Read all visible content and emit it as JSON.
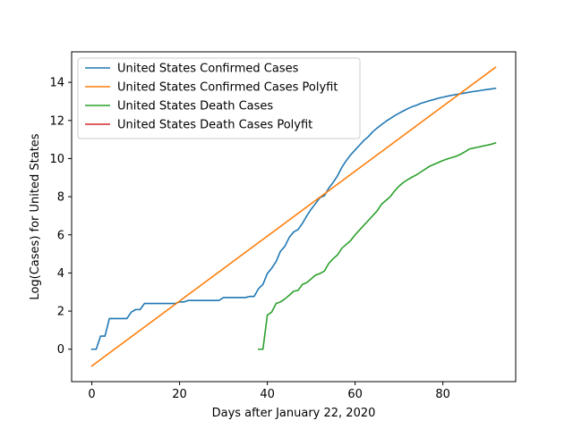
{
  "chart_data": {
    "type": "line",
    "title": "",
    "xlabel": "Days after January 22, 2020",
    "ylabel": "Log(Cases) for United States",
    "xlim": [
      -4.6,
      96.6
    ],
    "ylim": [
      -1.7,
      15.6
    ],
    "xticks": [
      0,
      20,
      40,
      60,
      80
    ],
    "yticks": [
      0,
      2,
      4,
      6,
      8,
      10,
      12,
      14
    ],
    "grid": false,
    "legend_position": "upper-left",
    "series": [
      {
        "name": "United States Confirmed Cases",
        "color": "#1f77b4",
        "points": [
          [
            0,
            0
          ],
          [
            1,
            0
          ],
          [
            2,
            0.69
          ],
          [
            3,
            0.69
          ],
          [
            4,
            1.61
          ],
          [
            5,
            1.61
          ],
          [
            6,
            1.61
          ],
          [
            7,
            1.61
          ],
          [
            8,
            1.61
          ],
          [
            9,
            1.95
          ],
          [
            10,
            2.08
          ],
          [
            11,
            2.08
          ],
          [
            12,
            2.4
          ],
          [
            13,
            2.4
          ],
          [
            14,
            2.4
          ],
          [
            15,
            2.4
          ],
          [
            16,
            2.4
          ],
          [
            17,
            2.4
          ],
          [
            18,
            2.4
          ],
          [
            19,
            2.4
          ],
          [
            20,
            2.48
          ],
          [
            21,
            2.48
          ],
          [
            22,
            2.56
          ],
          [
            23,
            2.56
          ],
          [
            24,
            2.56
          ],
          [
            25,
            2.56
          ],
          [
            26,
            2.56
          ],
          [
            27,
            2.56
          ],
          [
            28,
            2.56
          ],
          [
            29,
            2.56
          ],
          [
            30,
            2.71
          ],
          [
            31,
            2.71
          ],
          [
            32,
            2.71
          ],
          [
            33,
            2.71
          ],
          [
            34,
            2.71
          ],
          [
            35,
            2.71
          ],
          [
            36,
            2.77
          ],
          [
            37,
            2.77
          ],
          [
            38,
            3.18
          ],
          [
            39,
            3.4
          ],
          [
            40,
            3.97
          ],
          [
            41,
            4.25
          ],
          [
            42,
            4.6
          ],
          [
            43,
            5.14
          ],
          [
            44,
            5.4
          ],
          [
            45,
            5.87
          ],
          [
            46,
            6.15
          ],
          [
            47,
            6.28
          ],
          [
            48,
            6.6
          ],
          [
            49,
            7.0
          ],
          [
            50,
            7.35
          ],
          [
            51,
            7.65
          ],
          [
            52,
            7.95
          ],
          [
            53,
            8.05
          ],
          [
            54,
            8.45
          ],
          [
            55,
            8.75
          ],
          [
            56,
            9.1
          ],
          [
            57,
            9.55
          ],
          [
            58,
            9.9
          ],
          [
            59,
            10.2
          ],
          [
            60,
            10.45
          ],
          [
            61,
            10.7
          ],
          [
            62,
            10.95
          ],
          [
            63,
            11.15
          ],
          [
            64,
            11.4
          ],
          [
            65,
            11.6
          ],
          [
            66,
            11.78
          ],
          [
            67,
            11.95
          ],
          [
            68,
            12.1
          ],
          [
            69,
            12.25
          ],
          [
            70,
            12.38
          ],
          [
            71,
            12.5
          ],
          [
            72,
            12.62
          ],
          [
            73,
            12.72
          ],
          [
            74,
            12.8
          ],
          [
            75,
            12.9
          ],
          [
            76,
            12.97
          ],
          [
            77,
            13.04
          ],
          [
            78,
            13.1
          ],
          [
            79,
            13.17
          ],
          [
            80,
            13.22
          ],
          [
            81,
            13.27
          ],
          [
            82,
            13.32
          ],
          [
            83,
            13.36
          ],
          [
            84,
            13.4
          ],
          [
            85,
            13.44
          ],
          [
            86,
            13.48
          ],
          [
            87,
            13.52
          ],
          [
            88,
            13.55
          ],
          [
            89,
            13.59
          ],
          [
            90,
            13.62
          ],
          [
            91,
            13.65
          ],
          [
            92,
            13.69
          ]
        ]
      },
      {
        "name": "United States Confirmed Cases Polyfit",
        "color": "#ff7f0e",
        "points": [
          [
            0,
            -0.88
          ],
          [
            92,
            14.79
          ]
        ]
      },
      {
        "name": "United States Death Cases",
        "color": "#2ca02c",
        "points": [
          [
            38,
            0
          ],
          [
            39,
            0
          ],
          [
            40,
            1.79
          ],
          [
            41,
            1.95
          ],
          [
            42,
            2.4
          ],
          [
            43,
            2.48
          ],
          [
            44,
            2.64
          ],
          [
            45,
            2.83
          ],
          [
            46,
            3.04
          ],
          [
            47,
            3.09
          ],
          [
            48,
            3.4
          ],
          [
            49,
            3.5
          ],
          [
            50,
            3.69
          ],
          [
            51,
            3.89
          ],
          [
            52,
            3.97
          ],
          [
            53,
            4.1
          ],
          [
            54,
            4.5
          ],
          [
            55,
            4.75
          ],
          [
            56,
            4.95
          ],
          [
            57,
            5.3
          ],
          [
            58,
            5.5
          ],
          [
            59,
            5.7
          ],
          [
            60,
            6.0
          ],
          [
            61,
            6.25
          ],
          [
            62,
            6.5
          ],
          [
            63,
            6.75
          ],
          [
            64,
            7.0
          ],
          [
            65,
            7.25
          ],
          [
            66,
            7.6
          ],
          [
            67,
            7.8
          ],
          [
            68,
            8.0
          ],
          [
            69,
            8.3
          ],
          [
            70,
            8.55
          ],
          [
            71,
            8.75
          ],
          [
            72,
            8.9
          ],
          [
            73,
            9.03
          ],
          [
            74,
            9.15
          ],
          [
            75,
            9.3
          ],
          [
            76,
            9.45
          ],
          [
            77,
            9.6
          ],
          [
            78,
            9.7
          ],
          [
            79,
            9.8
          ],
          [
            80,
            9.9
          ],
          [
            81,
            9.98
          ],
          [
            82,
            10.05
          ],
          [
            83,
            10.12
          ],
          [
            84,
            10.22
          ],
          [
            85,
            10.35
          ],
          [
            86,
            10.5
          ],
          [
            87,
            10.55
          ],
          [
            88,
            10.6
          ],
          [
            89,
            10.65
          ],
          [
            90,
            10.7
          ],
          [
            91,
            10.75
          ],
          [
            92,
            10.82
          ]
        ]
      },
      {
        "name": "United States Death Cases Polyfit",
        "color": "#d62728",
        "points": []
      }
    ]
  }
}
